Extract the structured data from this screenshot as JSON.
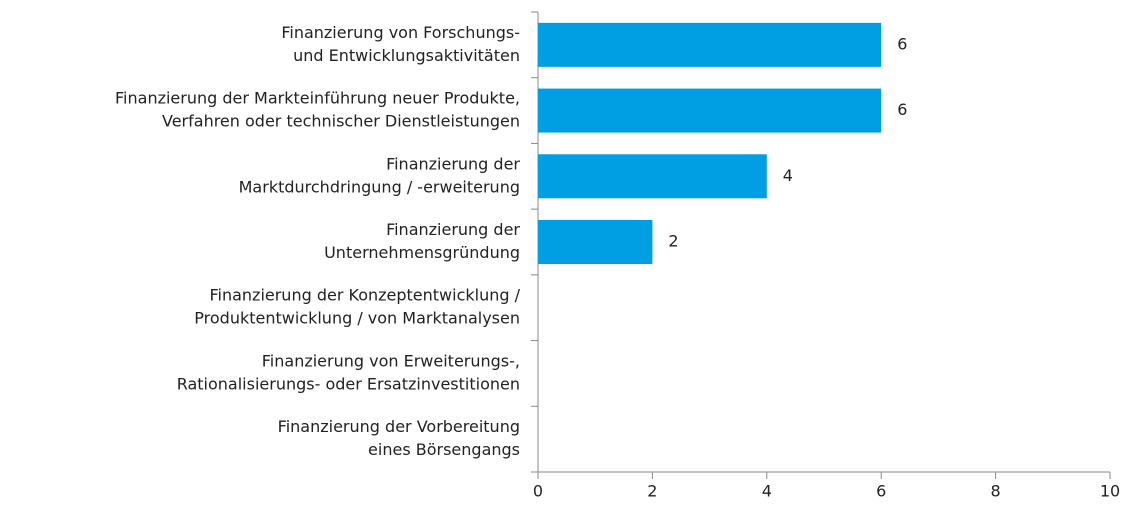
{
  "chart_data": {
    "type": "barh",
    "categories": [
      [
        "Finanzierung von Forschungs-",
        "und Entwicklungsaktivitäten"
      ],
      [
        "Finanzierung der Markteinführung neuer Produkte,",
        "Verfahren oder technischer Dienstleistungen"
      ],
      [
        "Finanzierung der",
        "Marktdurchdringung / -erweiterung"
      ],
      [
        "Finanzierung der",
        "Unternehmensgründung"
      ],
      [
        "Finanzierung der Konzeptentwicklung /",
        "Produktentwicklung / von Marktanalysen"
      ],
      [
        "Finanzierung von Erweiterungs-,",
        "Rationalisierungs- oder Ersatzinvestitionen"
      ],
      [
        "Finanzierung der Vorbereitung",
        "eines Börsengangs"
      ]
    ],
    "values": [
      6,
      6,
      4,
      2,
      0,
      0,
      0
    ],
    "color": "#009fe3",
    "xlim": [
      0,
      10
    ],
    "xticks": [
      0,
      2,
      4,
      6,
      8,
      10
    ]
  }
}
